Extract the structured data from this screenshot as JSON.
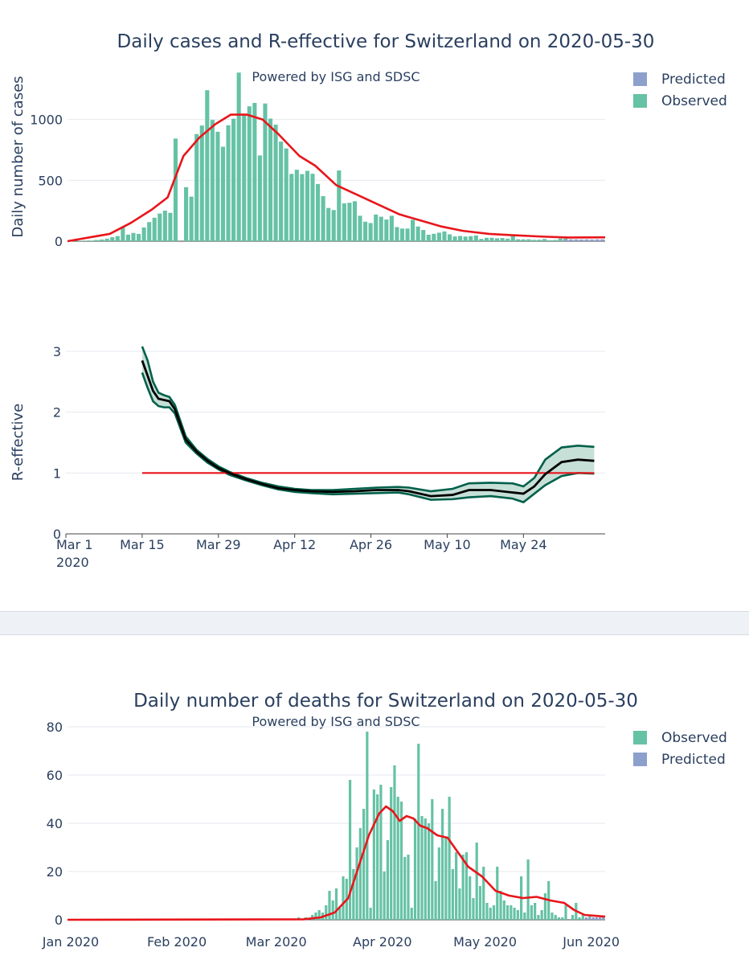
{
  "colors": {
    "observed": "#66c2a5",
    "predicted": "#8da0cb",
    "smooth": "#e8161b",
    "r_line": "#000000",
    "r_band_edge": "#00604a",
    "r_band_fill": "#c7e0d7",
    "reference": "#e8161b"
  },
  "chart_data": [
    {
      "type": "bar",
      "title": "Daily cases and R-effective for Switzerland on 2020-05-30",
      "subtitle": "Powered by ISG and SDSC",
      "ylabel": "Daily number of cases",
      "ylim": [
        0,
        1400
      ],
      "yticks": [
        0,
        500,
        1000
      ],
      "legend": [
        "Predicted",
        "Observed"
      ],
      "legend_position": "top-right",
      "x_start": "2020-02-25",
      "series": [
        {
          "name": "Observed",
          "values": [
            0,
            1,
            3,
            5,
            5,
            10,
            14,
            21,
            33,
            42,
            120,
            54,
            68,
            60,
            113,
            157,
            193,
            227,
            251,
            233,
            843,
            0,
            444,
            366,
            880,
            950,
            1240,
            996,
            899,
            776,
            952,
            1006,
            1385,
            1038,
            1108,
            1136,
            704,
            1131,
            1007,
            957,
            818,
            762,
            553,
            587,
            551,
            578,
            554,
            470,
            370,
            273,
            256,
            581,
            311,
            316,
            328,
            209,
            160,
            149,
            219,
            201,
            178,
            209,
            116,
            104,
            104,
            176,
            121,
            92,
            53,
            61,
            70,
            80,
            56,
            39,
            43,
            38,
            41,
            47,
            19,
            28,
            28,
            24,
            26,
            21,
            56,
            16,
            15,
            16,
            11,
            12,
            18,
            8,
            10,
            22,
            22,
            0,
            0,
            0,
            0,
            0,
            0,
            0,
            0
          ]
        },
        {
          "name": "Predicted",
          "values": [
            0,
            0,
            0,
            0,
            0,
            0,
            0,
            0,
            0,
            0,
            0,
            0,
            0,
            0,
            0,
            0,
            0,
            0,
            0,
            0,
            0,
            0,
            0,
            0,
            0,
            0,
            0,
            0,
            0,
            0,
            0,
            0,
            0,
            0,
            0,
            0,
            0,
            0,
            0,
            0,
            0,
            0,
            0,
            0,
            0,
            0,
            0,
            0,
            0,
            0,
            0,
            0,
            0,
            0,
            0,
            0,
            0,
            0,
            0,
            0,
            0,
            0,
            0,
            0,
            0,
            0,
            0,
            0,
            0,
            0,
            0,
            0,
            0,
            0,
            0,
            0,
            0,
            0,
            0,
            0,
            0,
            0,
            0,
            0,
            0,
            0,
            0,
            0,
            0,
            0,
            0,
            0,
            0,
            0,
            14,
            15,
            15,
            14,
            15,
            14,
            15,
            15
          ]
        }
      ],
      "smooth": {
        "x": [
          "2020-02-25",
          "2020-03-04",
          "2020-03-08",
          "2020-03-12",
          "2020-03-15",
          "2020-03-18",
          "2020-03-21",
          "2020-03-24",
          "2020-03-27",
          "2020-03-30",
          "2020-04-02",
          "2020-04-05",
          "2020-04-09",
          "2020-04-12",
          "2020-04-16",
          "2020-04-20",
          "2020-04-24",
          "2020-04-28",
          "2020-05-02",
          "2020-05-06",
          "2020-05-10",
          "2020-05-15",
          "2020-05-20",
          "2020-05-25",
          "2020-05-30",
          "2020-06-06"
        ],
        "y": [
          0,
          60,
          150,
          260,
          360,
          700,
          850,
          960,
          1040,
          1040,
          1000,
          880,
          700,
          620,
          460,
          380,
          300,
          220,
          170,
          120,
          85,
          60,
          48,
          38,
          30,
          32
        ]
      }
    },
    {
      "type": "line",
      "ylabel": "R-effective",
      "ylim": [
        0,
        3.1
      ],
      "yticks": [
        0,
        1,
        2,
        3
      ],
      "xticks": [
        "Mar 1\n2020",
        "Mar 15",
        "Mar 29",
        "Apr 12",
        "Apr 26",
        "May 10",
        "May 24"
      ],
      "reference_line": {
        "y": 1,
        "x_range": [
          "2020-03-15",
          "2020-06-06"
        ]
      },
      "series": [
        {
          "name": "R-effective",
          "x": [
            "2020-03-15",
            "2020-03-16",
            "2020-03-17",
            "2020-03-18",
            "2020-03-19",
            "2020-03-20",
            "2020-03-21",
            "2020-03-23",
            "2020-03-25",
            "2020-03-27",
            "2020-03-29",
            "2020-03-31",
            "2020-04-03",
            "2020-04-06",
            "2020-04-09",
            "2020-04-12",
            "2020-04-15",
            "2020-04-19",
            "2020-04-23",
            "2020-04-27",
            "2020-05-01",
            "2020-05-03",
            "2020-05-07",
            "2020-05-11",
            "2020-05-14",
            "2020-05-18",
            "2020-05-22",
            "2020-05-24",
            "2020-05-26",
            "2020-05-28",
            "2020-05-31",
            "2020-06-03",
            "2020-06-06"
          ],
          "y": [
            2.85,
            2.6,
            2.35,
            2.22,
            2.2,
            2.18,
            2.05,
            1.55,
            1.35,
            1.2,
            1.08,
            1.0,
            0.9,
            0.82,
            0.75,
            0.72,
            0.7,
            0.69,
            0.7,
            0.72,
            0.72,
            0.7,
            0.62,
            0.64,
            0.72,
            0.72,
            0.68,
            0.66,
            0.78,
            0.98,
            1.18,
            1.22,
            1.2
          ]
        },
        {
          "name": "upper",
          "x": [
            "2020-03-15",
            "2020-03-16",
            "2020-03-17",
            "2020-03-18",
            "2020-03-19",
            "2020-03-20",
            "2020-03-21",
            "2020-03-23",
            "2020-03-25",
            "2020-03-27",
            "2020-03-29",
            "2020-03-31",
            "2020-04-03",
            "2020-04-06",
            "2020-04-09",
            "2020-04-12",
            "2020-04-15",
            "2020-04-19",
            "2020-04-23",
            "2020-04-27",
            "2020-05-01",
            "2020-05-03",
            "2020-05-07",
            "2020-05-11",
            "2020-05-14",
            "2020-05-18",
            "2020-05-22",
            "2020-05-24",
            "2020-05-26",
            "2020-05-28",
            "2020-05-31",
            "2020-06-03",
            "2020-06-06"
          ],
          "y": [
            3.08,
            2.85,
            2.5,
            2.32,
            2.28,
            2.25,
            2.12,
            1.6,
            1.38,
            1.23,
            1.11,
            1.02,
            0.92,
            0.84,
            0.78,
            0.74,
            0.72,
            0.72,
            0.74,
            0.76,
            0.77,
            0.76,
            0.7,
            0.74,
            0.83,
            0.84,
            0.83,
            0.78,
            0.92,
            1.22,
            1.42,
            1.45,
            1.43
          ]
        },
        {
          "name": "lower",
          "x": [
            "2020-03-15",
            "2020-03-16",
            "2020-03-17",
            "2020-03-18",
            "2020-03-19",
            "2020-03-20",
            "2020-03-21",
            "2020-03-23",
            "2020-03-25",
            "2020-03-27",
            "2020-03-29",
            "2020-03-31",
            "2020-04-03",
            "2020-04-06",
            "2020-04-09",
            "2020-04-12",
            "2020-04-15",
            "2020-04-19",
            "2020-04-23",
            "2020-04-27",
            "2020-05-01",
            "2020-05-03",
            "2020-05-07",
            "2020-05-11",
            "2020-05-14",
            "2020-05-18",
            "2020-05-22",
            "2020-05-24",
            "2020-05-26",
            "2020-05-28",
            "2020-05-31",
            "2020-06-03",
            "2020-06-06"
          ],
          "y": [
            2.65,
            2.4,
            2.18,
            2.1,
            2.08,
            2.08,
            1.98,
            1.5,
            1.32,
            1.17,
            1.06,
            0.97,
            0.88,
            0.8,
            0.73,
            0.69,
            0.67,
            0.65,
            0.66,
            0.67,
            0.68,
            0.65,
            0.56,
            0.57,
            0.6,
            0.62,
            0.58,
            0.52,
            0.66,
            0.8,
            0.95,
            1.0,
            0.99
          ]
        }
      ]
    },
    {
      "type": "bar",
      "title": "Daily number of deaths for Switzerland on 2020-05-30",
      "subtitle": "Powered by ISG and SDSC",
      "ylim": [
        0,
        82
      ],
      "yticks": [
        0,
        20,
        40,
        60,
        80
      ],
      "xticks": [
        "Jan 2020",
        "Feb 2020",
        "Mar 2020",
        "Apr 2020",
        "May 2020",
        "Jun 2020"
      ],
      "legend": [
        "Observed",
        "Predicted"
      ],
      "legend_position": "top-right",
      "x_start": "2020-03-05",
      "series": [
        {
          "name": "Observed",
          "values": [
            0,
            0,
            0,
            1,
            0,
            1,
            0,
            2,
            3,
            4,
            3,
            6,
            12,
            8,
            13,
            5,
            18,
            17,
            58,
            21,
            30,
            38,
            46,
            78,
            5,
            54,
            52,
            56,
            20,
            33,
            55,
            64,
            51,
            49,
            26,
            27,
            5,
            42,
            73,
            43,
            42,
            40,
            50,
            16,
            30,
            46,
            34,
            51,
            21,
            28,
            13,
            27,
            28,
            18,
            9,
            32,
            14,
            22,
            7,
            5,
            6,
            22,
            12,
            8,
            6,
            6,
            5,
            4,
            18,
            3,
            25,
            6,
            7,
            2,
            4,
            11,
            16,
            3,
            2,
            1,
            1,
            6,
            0,
            2,
            7,
            1,
            2,
            1,
            2,
            1,
            1,
            1,
            1
          ]
        },
        {
          "name": "Predicted",
          "values": [
            0,
            0,
            0,
            0,
            0,
            0,
            0,
            0,
            0,
            0,
            0,
            0,
            0,
            0,
            0,
            0,
            0,
            0,
            0,
            0,
            0,
            0,
            0,
            0,
            0,
            0,
            0,
            0,
            0,
            0,
            0,
            0,
            0,
            0,
            0,
            0,
            0,
            0,
            0,
            0,
            0,
            0,
            0,
            0,
            0,
            0,
            0,
            0,
            0,
            0,
            0,
            0,
            0,
            0,
            0,
            0,
            0,
            0,
            0,
            0,
            0,
            0,
            0,
            0,
            0,
            0,
            0,
            0,
            0,
            0,
            0,
            0,
            0,
            0,
            0,
            0,
            0,
            0,
            0,
            0,
            0,
            0,
            0,
            0,
            0,
            0,
            0,
            1,
            1,
            1,
            1,
            1,
            1
          ]
        }
      ],
      "smooth": {
        "x": [
          "2020-01-01",
          "2020-03-10",
          "2020-03-15",
          "2020-03-19",
          "2020-03-23",
          "2020-03-26",
          "2020-03-29",
          "2020-04-01",
          "2020-04-03",
          "2020-04-05",
          "2020-04-07",
          "2020-04-09",
          "2020-04-11",
          "2020-04-13",
          "2020-04-15",
          "2020-04-18",
          "2020-04-21",
          "2020-04-24",
          "2020-04-27",
          "2020-05-01",
          "2020-05-05",
          "2020-05-09",
          "2020-05-13",
          "2020-05-17",
          "2020-05-21",
          "2020-05-25",
          "2020-05-28",
          "2020-05-31",
          "2020-06-06"
        ],
        "y": [
          0,
          0.2,
          1,
          3,
          9,
          22,
          35,
          44,
          47,
          45,
          41,
          43,
          42,
          39,
          38,
          35,
          34,
          28,
          22,
          18,
          12,
          10,
          9,
          9.5,
          8,
          7,
          4,
          2,
          1.3
        ]
      }
    }
  ]
}
